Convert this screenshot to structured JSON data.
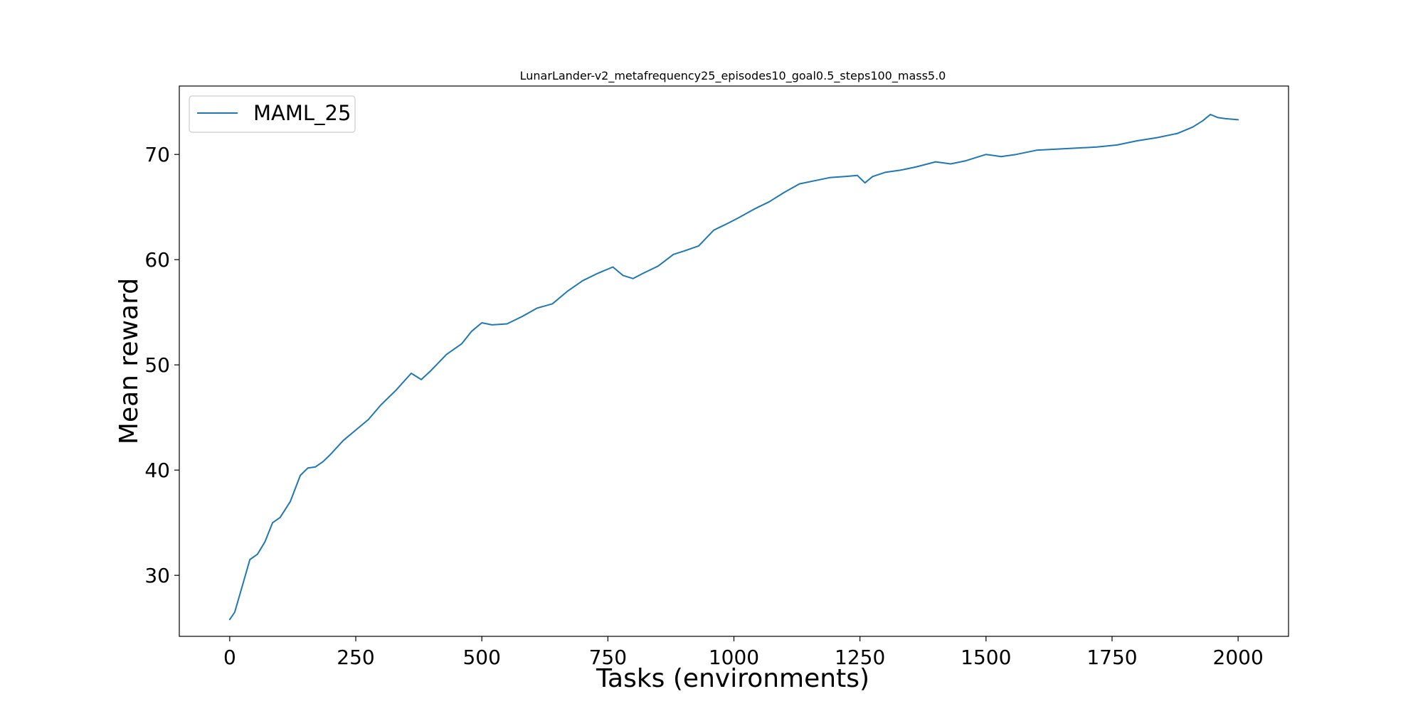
{
  "chart_data": {
    "type": "line",
    "title": "LunarLander-v2_metafrequency25_episodes10_goal0.5_steps100_mass5.0",
    "xlabel": "Tasks (environments)",
    "ylabel": "Mean reward",
    "xlim": [
      -100,
      2100
    ],
    "ylim": [
      24.2,
      76.5
    ],
    "xticks": [
      0,
      250,
      500,
      750,
      1000,
      1250,
      1500,
      1750,
      2000
    ],
    "xtick_labels": [
      "0",
      "250",
      "500",
      "750",
      "1000",
      "1250",
      "1500",
      "1750",
      "2000"
    ],
    "yticks": [
      30,
      40,
      50,
      60,
      70
    ],
    "ytick_labels": [
      "30",
      "40",
      "50",
      "60",
      "70"
    ],
    "grid": false,
    "legend_position": "upper-left",
    "colors": {
      "series": "#1f77b4",
      "axes": "#000000",
      "legend_border": "#cccccc"
    },
    "series": [
      {
        "name": "MAML_25",
        "color": "#1f77b4",
        "x": [
          0,
          10,
          25,
          40,
          55,
          70,
          85,
          100,
          120,
          140,
          155,
          170,
          185,
          200,
          225,
          250,
          275,
          300,
          330,
          360,
          380,
          400,
          430,
          460,
          480,
          500,
          520,
          550,
          580,
          610,
          640,
          670,
          700,
          730,
          760,
          780,
          800,
          820,
          850,
          880,
          900,
          930,
          960,
          990,
          1010,
          1040,
          1070,
          1100,
          1130,
          1160,
          1190,
          1220,
          1245,
          1260,
          1275,
          1300,
          1330,
          1360,
          1400,
          1430,
          1460,
          1500,
          1530,
          1560,
          1600,
          1640,
          1680,
          1720,
          1760,
          1800,
          1840,
          1880,
          1910,
          1930,
          1945,
          1960,
          1975,
          2000
        ],
        "values": [
          25.8,
          26.5,
          29.0,
          31.5,
          32.0,
          33.2,
          35.0,
          35.5,
          37.0,
          39.5,
          40.2,
          40.3,
          40.8,
          41.5,
          42.8,
          43.8,
          44.8,
          46.2,
          47.6,
          49.2,
          48.6,
          49.5,
          51.0,
          52.0,
          53.2,
          54.0,
          53.8,
          53.9,
          54.6,
          55.4,
          55.8,
          57.0,
          58.0,
          58.7,
          59.3,
          58.5,
          58.2,
          58.7,
          59.4,
          60.5,
          60.8,
          61.3,
          62.8,
          63.5,
          64.0,
          64.8,
          65.5,
          66.4,
          67.2,
          67.5,
          67.8,
          67.9,
          68.0,
          67.3,
          67.9,
          68.3,
          68.5,
          68.8,
          69.3,
          69.1,
          69.4,
          70.0,
          69.8,
          70.0,
          70.4,
          70.5,
          70.6,
          70.7,
          70.9,
          71.3,
          71.6,
          72.0,
          72.6,
          73.2,
          73.8,
          73.5,
          73.4,
          73.3
        ]
      }
    ]
  }
}
